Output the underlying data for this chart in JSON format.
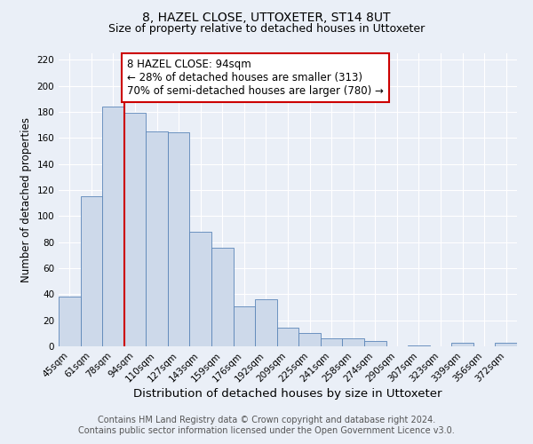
{
  "title": "8, HAZEL CLOSE, UTTOXETER, ST14 8UT",
  "subtitle": "Size of property relative to detached houses in Uttoxeter",
  "xlabel": "Distribution of detached houses by size in Uttoxeter",
  "ylabel": "Number of detached properties",
  "footer_line1": "Contains HM Land Registry data © Crown copyright and database right 2024.",
  "footer_line2": "Contains public sector information licensed under the Open Government Licence v3.0.",
  "bin_labels": [
    "45sqm",
    "61sqm",
    "78sqm",
    "94sqm",
    "110sqm",
    "127sqm",
    "143sqm",
    "159sqm",
    "176sqm",
    "192sqm",
    "209sqm",
    "225sqm",
    "241sqm",
    "258sqm",
    "274sqm",
    "290sqm",
    "307sqm",
    "323sqm",
    "339sqm",
    "356sqm",
    "372sqm"
  ],
  "bar_heights": [
    38,
    115,
    184,
    179,
    165,
    164,
    88,
    76,
    31,
    36,
    14,
    10,
    6,
    6,
    4,
    0,
    1,
    0,
    3,
    0,
    3
  ],
  "bar_color": "#cdd9ea",
  "bar_edge_color": "#5a85b8",
  "vline_x": 3,
  "vline_color": "#cc0000",
  "annotation_text": "8 HAZEL CLOSE: 94sqm\n← 28% of detached houses are smaller (313)\n70% of semi-detached houses are larger (780) →",
  "annotation_box_color": "#cc0000",
  "ylim": [
    0,
    225
  ],
  "yticks": [
    0,
    20,
    40,
    60,
    80,
    100,
    120,
    140,
    160,
    180,
    200,
    220
  ],
  "background_color": "#eaeff7",
  "grid_color": "#ffffff",
  "title_fontsize": 10,
  "subtitle_fontsize": 9,
  "xlabel_fontsize": 9.5,
  "ylabel_fontsize": 8.5,
  "tick_fontsize": 7.5,
  "annotation_fontsize": 8.5,
  "footer_fontsize": 7
}
